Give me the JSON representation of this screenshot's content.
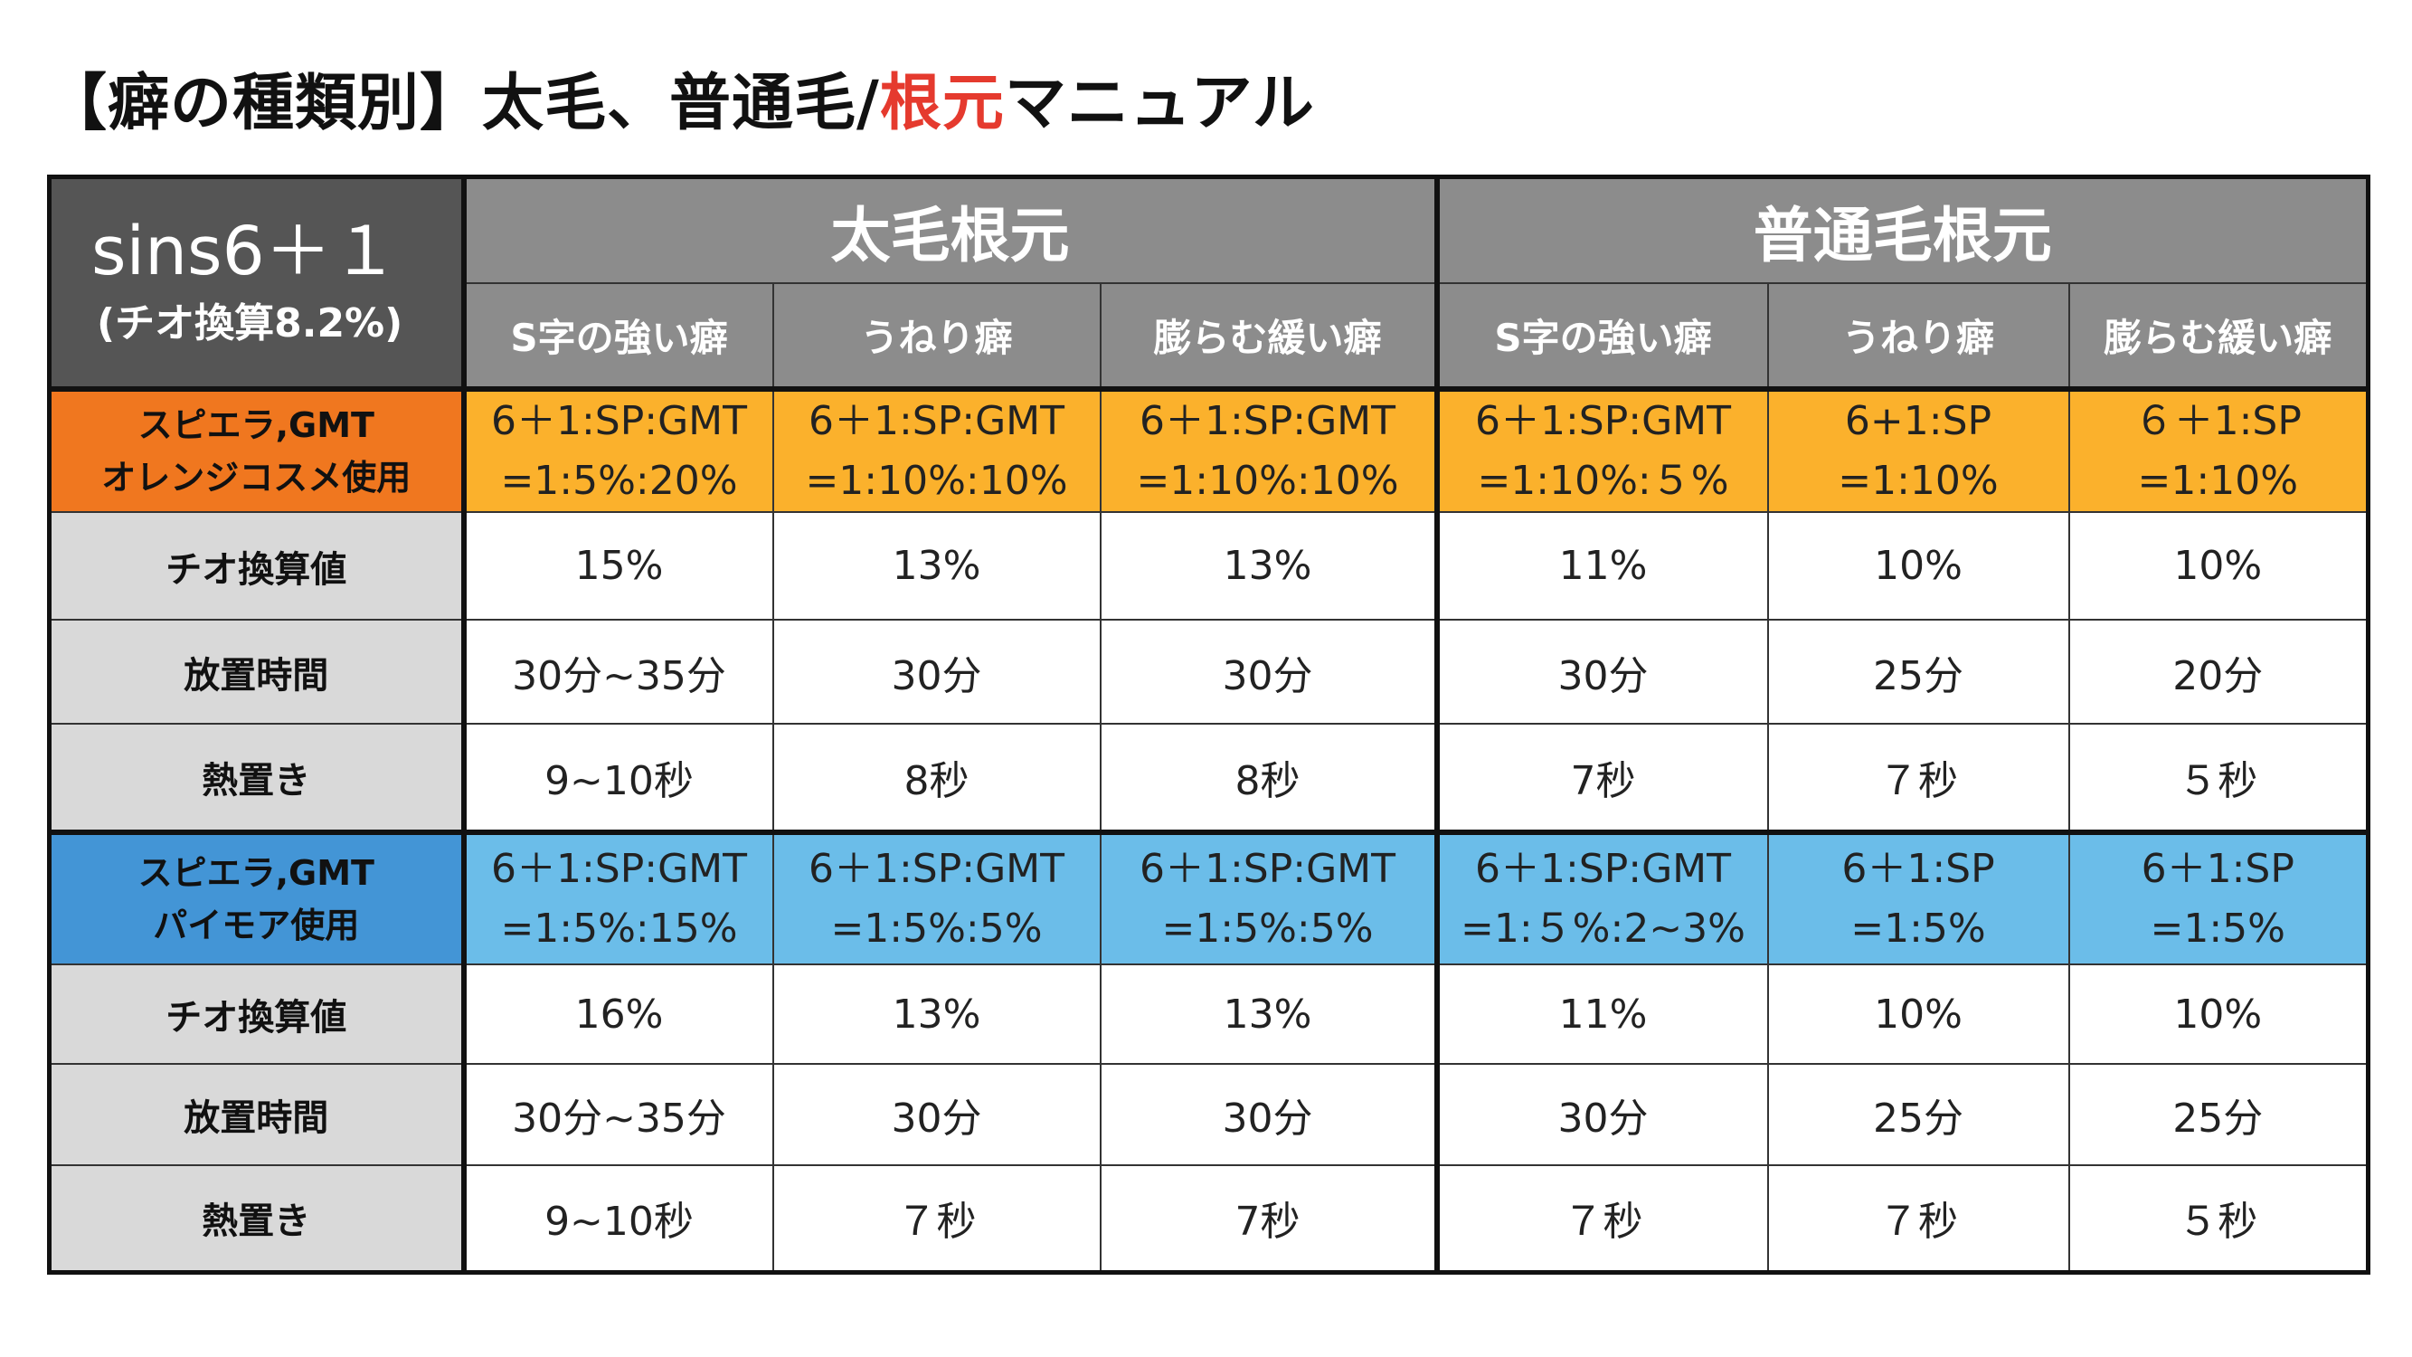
{
  "title": {
    "prefix": "【癖の種類別】太毛、普通毛/",
    "accent": "根元",
    "suffix": "マニュアル"
  },
  "corner": {
    "main": "sins6＋１",
    "sub": "(チオ換算8.2%)"
  },
  "groups": [
    "太毛根元",
    "普通毛根元"
  ],
  "columns": [
    "S字の強い癖",
    "うねり癖",
    "膨らむ緩い癖",
    "S字の強い癖",
    "うねり癖",
    "膨らむ緩い癖"
  ],
  "sections": [
    {
      "label_line1": "スピエラ,GMT",
      "label_line2": "オレンジコスメ使用",
      "formulas": [
        {
          "line1": "6＋1:SP:GMT",
          "line2": "=1:5%:20%"
        },
        {
          "line1": "6＋1:SP:GMT",
          "line2": "=1:10%:10%"
        },
        {
          "line1": "6＋1:SP:GMT",
          "line2": "=1:10%:10%"
        },
        {
          "line1": "6＋1:SP:GMT",
          "line2": "=1:10%:５%"
        },
        {
          "line1": "6+1:SP",
          "line2": "=1:10%"
        },
        {
          "line1": "６＋1:SP",
          "line2": "=1:10%"
        }
      ],
      "rows": [
        {
          "label": "チオ換算値",
          "values": [
            "15%",
            "13%",
            "13%",
            "11%",
            "10%",
            "10%"
          ]
        },
        {
          "label": "放置時間",
          "values": [
            "30分~35分",
            "30分",
            "30分",
            "30分",
            "25分",
            "20分"
          ]
        },
        {
          "label": "熱置き",
          "values": [
            "9~10秒",
            "8秒",
            "8秒",
            "7秒",
            "７秒",
            "５秒"
          ]
        }
      ]
    },
    {
      "label_line1": "スピエラ,GMT",
      "label_line2": "パイモア使用",
      "formulas": [
        {
          "line1": "6＋1:SP:GMT",
          "line2": "=1:5%:15%"
        },
        {
          "line1": "6＋1:SP:GMT",
          "line2": "=1:5%:5%"
        },
        {
          "line1": "6＋1:SP:GMT",
          "line2": "=1:5%:5%"
        },
        {
          "line1": "6＋1:SP:GMT",
          "line2": "=1:５%:2~3%"
        },
        {
          "line1": "6＋1:SP",
          "line2": "=1:5%"
        },
        {
          "line1": "6＋1:SP",
          "line2": "=1:5%"
        }
      ],
      "rows": [
        {
          "label": "チオ換算値",
          "values": [
            "16%",
            "13%",
            "13%",
            "11%",
            "10%",
            "10%"
          ]
        },
        {
          "label": "放置時間",
          "values": [
            "30分~35分",
            "30分",
            "30分",
            "30分",
            "25分",
            "25分"
          ]
        },
        {
          "label": "熱置き",
          "values": [
            "9~10秒",
            "７秒",
            "7秒",
            "７秒",
            "７秒",
            "５秒"
          ]
        }
      ]
    }
  ],
  "colors": {
    "header_gray": "#8c8c8c",
    "corner_dark": "#555555",
    "label_gray": "#d9d9d9",
    "orange_label": "#f0771f",
    "orange_cell": "#fbb12c",
    "blue_label": "#4395d6",
    "blue_cell": "#6bbde9",
    "title_accent": "#e53a2e"
  }
}
